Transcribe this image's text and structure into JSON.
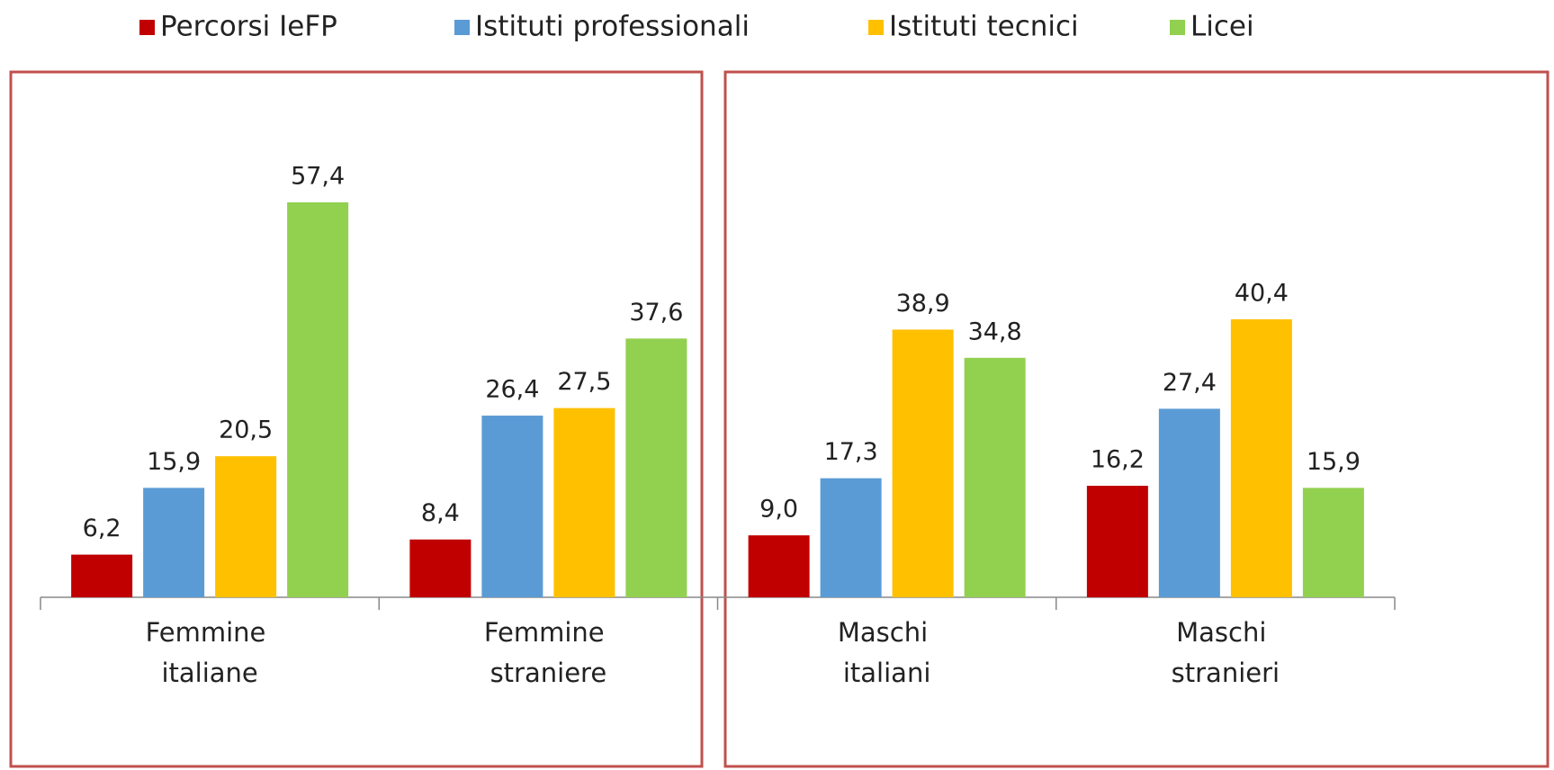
{
  "chart_data": {
    "type": "bar",
    "categories": [
      "Femmine italiane",
      "Femmine straniere",
      "Maschi italiani",
      "Maschi stranieri"
    ],
    "series": [
      {
        "name": "Percorsi IeFP",
        "color": "#c00000",
        "values": [
          6.2,
          8.4,
          9.0,
          16.2
        ],
        "value_labels": [
          "6,2",
          "8,4",
          "9,0",
          "16,2"
        ]
      },
      {
        "name": "Istituti professionali",
        "color": "#5b9bd5",
        "values": [
          15.9,
          26.4,
          17.3,
          27.4
        ],
        "value_labels": [
          "15,9",
          "26,4",
          "17,3",
          "27,4"
        ]
      },
      {
        "name": "Istituti tecnici",
        "color": "#ffc000",
        "values": [
          20.5,
          27.5,
          38.9,
          40.4
        ],
        "value_labels": [
          "20,5",
          "27,5",
          "38,9",
          "40,4"
        ]
      },
      {
        "name": "Licei",
        "color": "#92d050",
        "values": [
          57.4,
          37.6,
          34.8,
          15.9
        ],
        "value_labels": [
          "57,4",
          "37,6",
          "34,8",
          "15,9"
        ]
      }
    ],
    "ylim": [
      0,
      60
    ],
    "legend": "top"
  }
}
